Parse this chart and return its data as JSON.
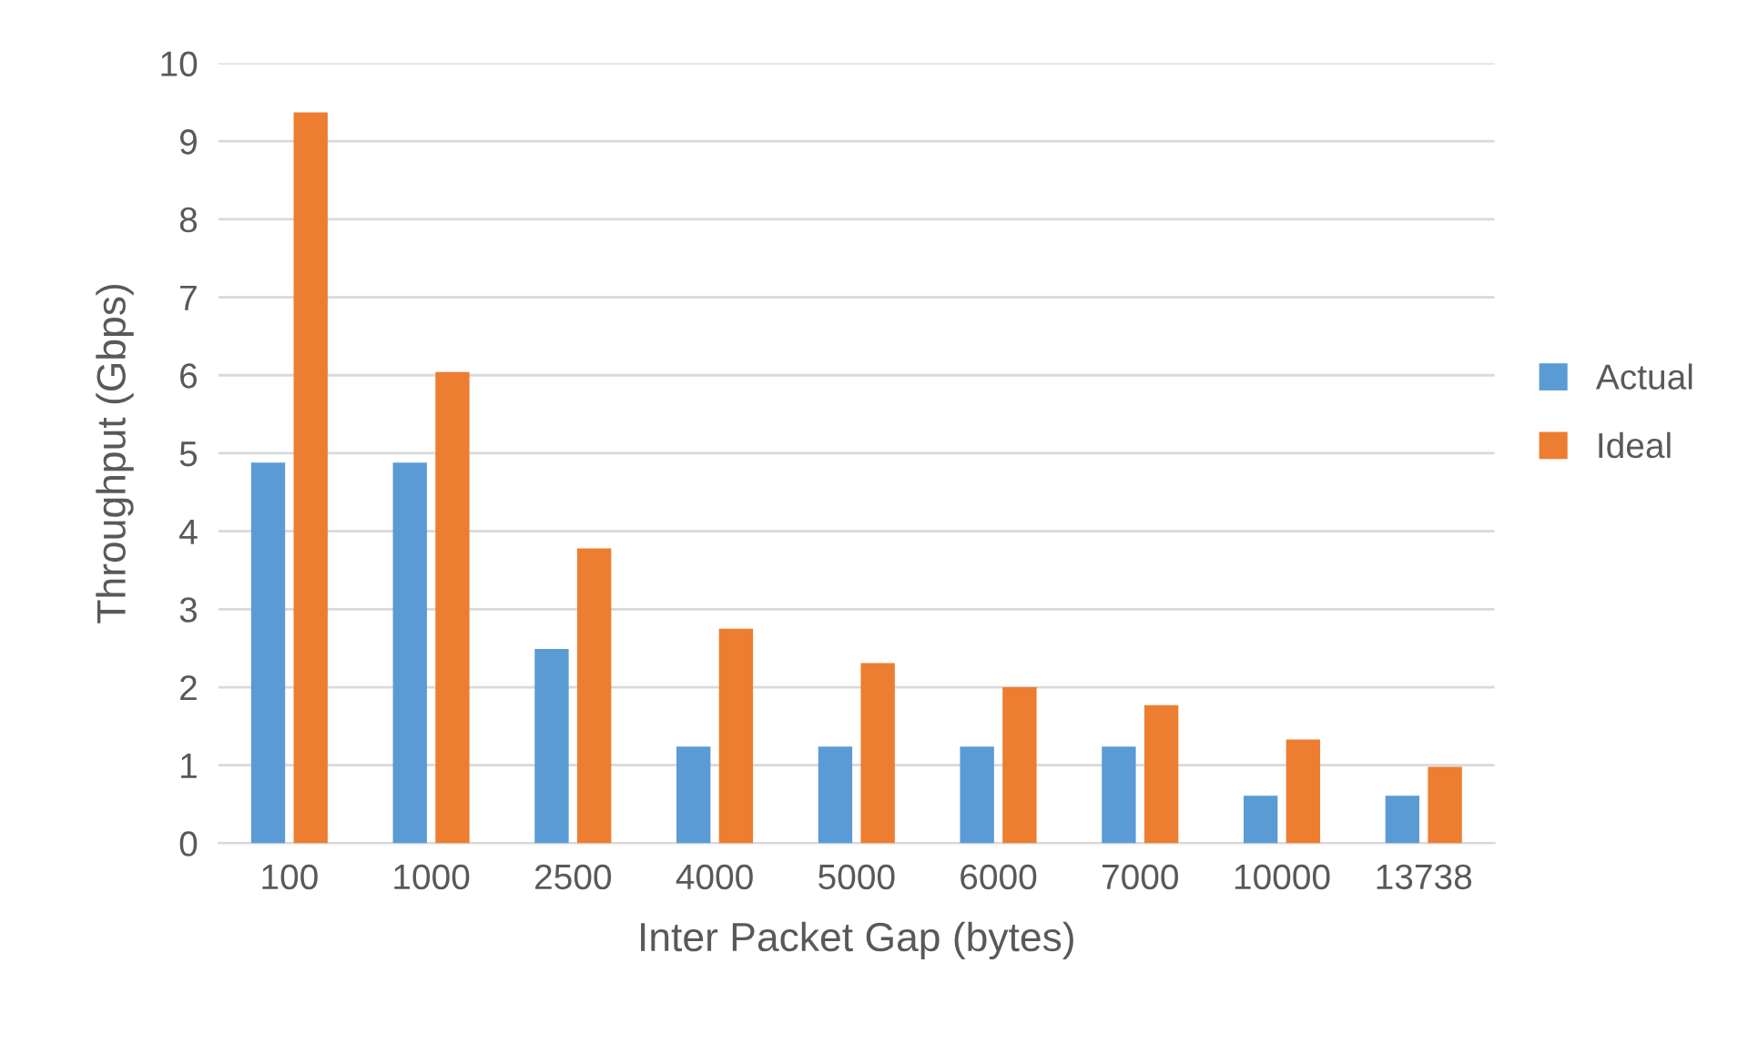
{
  "chart_data": {
    "type": "bar",
    "xlabel": "Inter Packet Gap (bytes)",
    "ylabel": "Throughput (Gbps)",
    "categories": [
      "100",
      "1000",
      "2500",
      "4000",
      "5000",
      "6000",
      "7000",
      "10000",
      "13738"
    ],
    "series": [
      {
        "name": "Actual",
        "color": "#5b9bd5",
        "values": [
          4.88,
          4.88,
          2.49,
          1.24,
          1.24,
          1.24,
          1.24,
          0.61,
          0.61
        ]
      },
      {
        "name": "Ideal",
        "color": "#ed7d31",
        "values": [
          9.37,
          6.04,
          3.78,
          2.75,
          2.31,
          2.0,
          1.77,
          1.33,
          0.98
        ]
      }
    ],
    "ylim": [
      0,
      10
    ],
    "yticks": [
      0,
      1,
      2,
      3,
      4,
      5,
      6,
      7,
      8,
      9,
      10
    ],
    "grid": "y",
    "legend": "right"
  }
}
